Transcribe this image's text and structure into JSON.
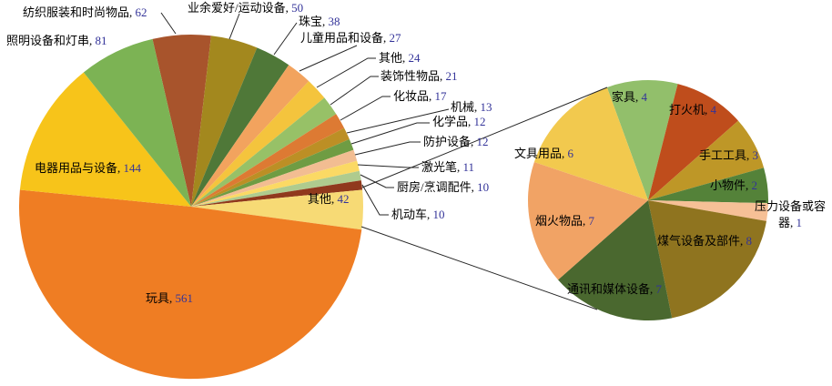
{
  "style": {
    "background_color": "#FFFFFF",
    "text_color": "#000000",
    "number_color": "#333399",
    "leader_line_color": "#262626"
  },
  "chart_data": [
    {
      "type": "pie",
      "name": "main-pie",
      "title": "",
      "total": 1135,
      "legend": "none",
      "slices": [
        {
          "key": "textiles-fashion",
          "name": "纺织服装和时尚物品",
          "value": 62,
          "color": "#A8542C"
        },
        {
          "key": "hobby-sports",
          "name": "业余爱好/运动设备",
          "value": 50,
          "color": "#A3881E"
        },
        {
          "key": "jewelry",
          "name": "珠宝",
          "value": 38,
          "color": "#4F7838"
        },
        {
          "key": "children-products",
          "name": "儿童用品和设备",
          "value": 27,
          "color": "#F2A35E"
        },
        {
          "key": "other-small",
          "name": "其他",
          "value": 24,
          "color": "#F4C43D"
        },
        {
          "key": "decorative-items",
          "name": "装饰性物品",
          "value": 21,
          "color": "#97C167"
        },
        {
          "key": "cosmetics",
          "name": "化妆品",
          "value": 17,
          "color": "#DD7A33"
        },
        {
          "key": "machinery",
          "name": "机械",
          "value": 13,
          "color": "#BC8F25"
        },
        {
          "key": "chemicals",
          "name": "化学品",
          "value": 12,
          "color": "#6F9C43"
        },
        {
          "key": "protective-equipment",
          "name": "防护设备",
          "value": 12,
          "color": "#F2BD92"
        },
        {
          "key": "laser-pens",
          "name": "激光笔",
          "value": 11,
          "color": "#FBD964"
        },
        {
          "key": "kitchen-accessories",
          "name": "厨房/烹调配件",
          "value": 10,
          "color": "#AFCB8E"
        },
        {
          "key": "motor-vehicles",
          "name": "机动车",
          "value": 10,
          "color": "#90391D"
        },
        {
          "key": "other-grouped",
          "name": "其他",
          "value": 42,
          "color": "#F7DA75"
        },
        {
          "key": "toys",
          "name": "玩具",
          "value": 561,
          "color": "#EF7D23"
        },
        {
          "key": "electrical-appliances",
          "name": "电器用品与设备",
          "value": 144,
          "color": "#F7C41A"
        },
        {
          "key": "lighting",
          "name": "照明设备和灯串",
          "value": 81,
          "color": "#7CB354"
        }
      ]
    },
    {
      "type": "pie",
      "name": "secondary-pie",
      "title": "",
      "total": 42,
      "legend": "none",
      "slices": [
        {
          "key": "furniture",
          "name": "家具",
          "value": 4,
          "color": "#92BF6B"
        },
        {
          "key": "lighters",
          "name": "打火机",
          "value": 4,
          "color": "#BF4D1C"
        },
        {
          "key": "hand-tools",
          "name": "手工工具",
          "value": 3,
          "color": "#BE9727"
        },
        {
          "key": "small-items",
          "name": "小物件",
          "value": 2,
          "color": "#548239"
        },
        {
          "key": "pressure-vessels",
          "name": "压力设备或容器",
          "value": 1,
          "color": "#F6C096"
        },
        {
          "key": "gas-equipment",
          "name": "煤气设备及部件",
          "value": 8,
          "color": "#8F741F"
        },
        {
          "key": "communication-media",
          "name": "通讯和媒体设备",
          "value": 7,
          "color": "#4A682F"
        },
        {
          "key": "fireworks",
          "name": "烟火物品",
          "value": 7,
          "color": "#F1A365"
        },
        {
          "key": "stationery",
          "name": "文具用品",
          "value": 6,
          "color": "#F2C94E"
        }
      ]
    }
  ]
}
